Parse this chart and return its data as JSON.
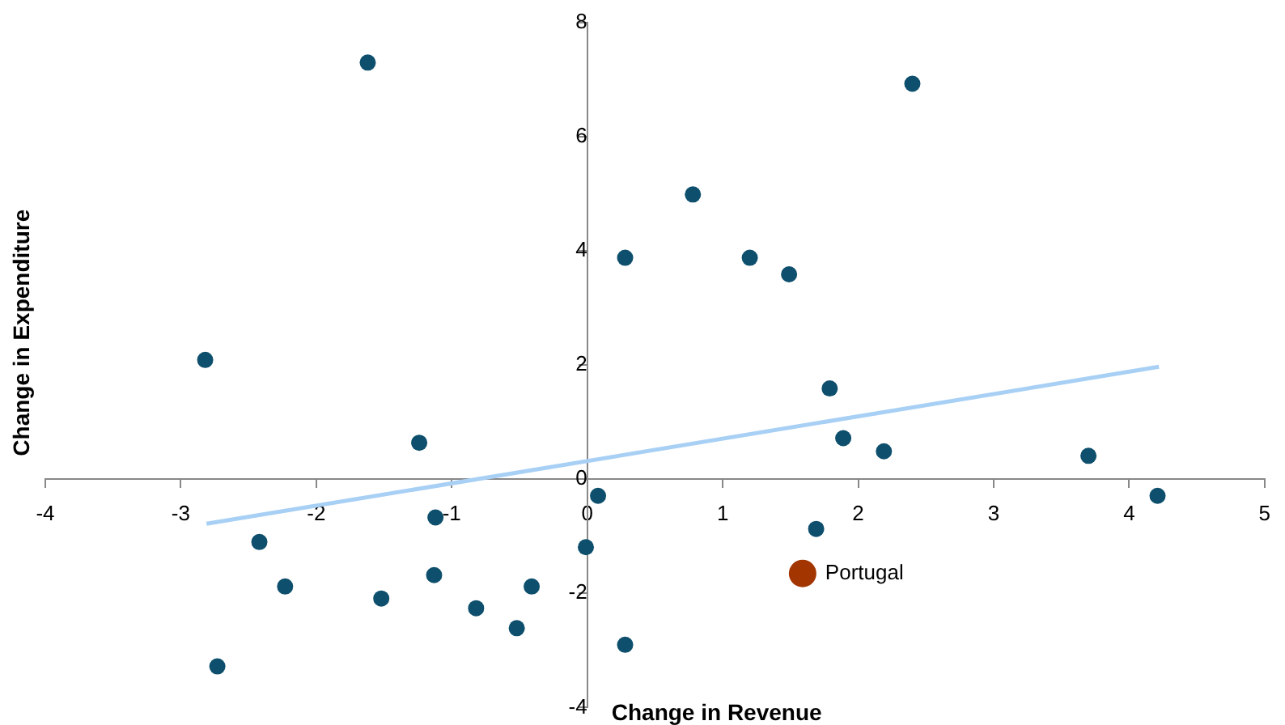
{
  "chart_data": {
    "type": "scatter",
    "xlabel": "Change in Revenue",
    "ylabel": "Change in Expenditure",
    "xlim": [
      -4,
      5
    ],
    "xticks": [
      -4,
      -3,
      -2,
      -1,
      0,
      1,
      2,
      3,
      4,
      5
    ],
    "ylim": [
      -4,
      8
    ],
    "yticks": [
      -4,
      -2,
      0,
      2,
      4,
      6,
      8
    ],
    "grid": false,
    "legend": false,
    "marker": "circle",
    "series": [
      {
        "color": "#0d4f6c",
        "x": [
          -1.62,
          2.4,
          0.78,
          0.28,
          1.2,
          1.49,
          -2.82,
          1.79,
          -1.24,
          1.89,
          2.19,
          3.7,
          4.21,
          0.08,
          -1.12,
          -2.42,
          1.69,
          -0.01,
          -2.23,
          -1.13,
          -0.41,
          -1.52,
          -0.82,
          -0.52,
          0.28,
          -2.73
        ],
        "values": [
          7.3,
          6.93,
          4.99,
          3.88,
          3.88,
          3.59,
          2.09,
          1.59,
          0.64,
          0.72,
          0.49,
          0.41,
          -0.29,
          -0.29,
          -0.67,
          -1.1,
          -0.87,
          -1.19,
          -1.88,
          -1.68,
          -1.88,
          -2.09,
          -2.26,
          -2.61,
          -2.9,
          -3.28
        ]
      },
      {
        "type": "scatter",
        "name": "Portugal",
        "color": "#a33500",
        "x": [
          1.59
        ],
        "values": [
          -1.65
        ]
      },
      {
        "type": "line",
        "color": "#a8d0f5",
        "marker": "none",
        "x": [
          -2.81,
          4.22
        ],
        "values": [
          -0.78,
          1.97
        ]
      }
    ]
  }
}
